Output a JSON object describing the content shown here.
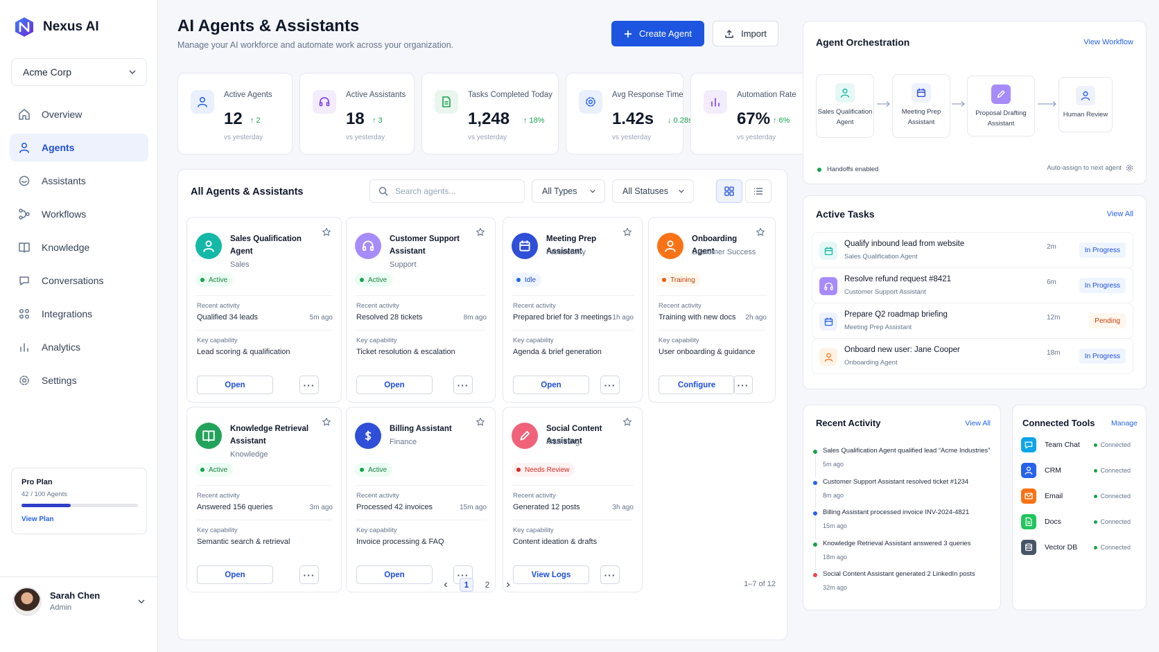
{
  "brand": {
    "name": "Nexus AI"
  },
  "org_selector": {
    "value": "Acme Corp"
  },
  "nav": [
    {
      "label": "Overview",
      "icon": "home-icon"
    },
    {
      "label": "Agents",
      "icon": "agent-icon",
      "active": true
    },
    {
      "label": "Assistants",
      "icon": "assistant-icon"
    },
    {
      "label": "Workflows",
      "icon": "workflow-icon"
    },
    {
      "label": "Knowledge",
      "icon": "book-icon"
    },
    {
      "label": "Conversations",
      "icon": "chat-icon"
    },
    {
      "label": "Integrations",
      "icon": "integrations-icon"
    },
    {
      "label": "Analytics",
      "icon": "analytics-icon"
    },
    {
      "label": "Settings",
      "icon": "gear-icon"
    }
  ],
  "plan": {
    "title": "Pro Plan",
    "usage": "42 / 100 Agents",
    "used": 42,
    "total": 100,
    "link": "View Plan"
  },
  "user": {
    "name": "Sarah Chen",
    "role": "Admin"
  },
  "header": {
    "title": "AI Agents & Assistants",
    "subtitle": "Manage your AI workforce and automate work across your organization.",
    "create_label": "Create Agent",
    "import_label": "Import"
  },
  "stats": [
    {
      "label": "Active Agents",
      "value": "12",
      "delta": "↑ 2",
      "note": "vs yesterday",
      "color": "#2563eb"
    },
    {
      "label": "Active Assistants",
      "value": "18",
      "delta": "↑ 3",
      "note": "vs yesterday",
      "color": "#7c3aed"
    },
    {
      "label": "Tasks Completed Today",
      "value": "1,248",
      "delta": "↑ 18%",
      "note": "vs yesterday",
      "color": "#16a34a"
    },
    {
      "label": "Avg Response Time",
      "value": "1.42s",
      "delta": "↓ 0.28s",
      "note": "vs yesterday",
      "color": "#2563eb"
    },
    {
      "label": "Automation Rate",
      "value": "67%",
      "delta": "↑ 6%",
      "note": "vs yesterday",
      "color": "#7c3aed"
    }
  ],
  "list": {
    "title": "All Agents & Assistants",
    "search_placeholder": "Search agents...",
    "type_filter": "All Types",
    "status_filter": "All Statuses",
    "activity_label": "Recent activity",
    "capability_label": "Key capability",
    "pagination": {
      "pages": [
        "1",
        "2"
      ],
      "current": "1",
      "count": "1–7 of 12"
    }
  },
  "cards": [
    {
      "name": "Sales Qualification Agent",
      "category": "Sales",
      "status": "Active",
      "status_kind": "green",
      "activity": "Qualified 34 leads",
      "time": "5m ago",
      "capability": "Lead scoring & qualification",
      "action": "Open",
      "color": "#14b8a6",
      "icon": "person-icon"
    },
    {
      "name": "Customer Support Assistant",
      "category": "Support",
      "status": "Active",
      "status_kind": "green",
      "activity": "Resolved 28 tickets",
      "time": "8m ago",
      "capability": "Ticket resolution & escalation",
      "action": "Open",
      "color": "#a78bfa",
      "icon": "headset-icon"
    },
    {
      "name": "Meeting Prep Assistant",
      "category": "Productivity",
      "status": "Idle",
      "status_kind": "blue",
      "activity": "Prepared brief for 3 meetings",
      "time": "1h ago",
      "capability": "Agenda & brief generation",
      "action": "Open",
      "color": "#2f4fd8",
      "icon": "calendar-icon"
    },
    {
      "name": "Onboarding Agent",
      "category": "Customer Success",
      "status": "Training",
      "status_kind": "orange",
      "activity": "Training with new docs",
      "time": "2h ago",
      "capability": "User onboarding & guidance",
      "action": "Configure",
      "color": "#f97316",
      "icon": "person-icon"
    },
    {
      "name": "Knowledge Retrieval Assistant",
      "category": "Knowledge",
      "status": "Active",
      "status_kind": "green",
      "activity": "Answered 156 queries",
      "time": "3m ago",
      "capability": "Semantic search & retrieval",
      "action": "Open",
      "color": "#22a35a",
      "icon": "book-icon"
    },
    {
      "name": "Billing Assistant",
      "category": "Finance",
      "status": "Active",
      "status_kind": "green",
      "activity": "Processed 42 invoices",
      "time": "15m ago",
      "capability": "Invoice processing & FAQ",
      "action": "Open",
      "color": "#2f4fd8",
      "icon": "dollar-icon"
    },
    {
      "name": "Social Content Assistant",
      "category": "Marketing",
      "status": "Needs Review",
      "status_kind": "red",
      "activity": "Generated 12 posts",
      "time": "3h ago",
      "capability": "Content ideation & drafts",
      "action": "View Logs",
      "color": "#f06277",
      "icon": "pen-icon"
    }
  ],
  "orchestration": {
    "title": "Agent Orchestration",
    "link": "View Workflow",
    "nodes": [
      {
        "label1": "Sales Qualification",
        "label2": "Agent",
        "color": "#14b8a6",
        "bg": "#e6f8f5"
      },
      {
        "label1": "Meeting Prep",
        "label2": "Assistant",
        "color": "#2f4fd8",
        "bg": "#eef2fd"
      },
      {
        "label1": "Proposal Drafting",
        "label2": "Assistant",
        "color": "#a78bfa",
        "bg": "#a78bfa"
      },
      {
        "label1": "Human Review",
        "label2": "",
        "color": "#2563eb",
        "bg": "#eef2fd"
      }
    ],
    "handoffs": "Handoffs enabled",
    "auto_assign": "Auto-assign to next agent"
  },
  "tasks": {
    "title": "Active Tasks",
    "link": "View All",
    "items": [
      {
        "title": "Qualify inbound lead from website",
        "agent": "Sales Qualification Agent",
        "time": "2m",
        "status": "In Progress",
        "kind": "blue",
        "color": "#14b8a6",
        "bg": "#e6f8f5"
      },
      {
        "title": "Resolve refund request #8421",
        "agent": "Customer Support Assistant",
        "time": "6m",
        "status": "In Progress",
        "kind": "blue",
        "color": "#ffffff",
        "bg": "#a78bfa"
      },
      {
        "title": "Prepare Q2 roadmap briefing",
        "agent": "Meeting Prep Assistant",
        "time": "12m",
        "status": "Pending",
        "kind": "orange",
        "color": "#2563eb",
        "bg": "#eef2fd"
      },
      {
        "title": "Onboard new user: Jane Cooper",
        "agent": "Onboarding Agent",
        "time": "18m",
        "status": "In Progress",
        "kind": "blue",
        "color": "#f97316",
        "bg": "#fff3e6"
      }
    ]
  },
  "recent": {
    "title": "Recent Activity",
    "link": "View All",
    "items": [
      {
        "text": "Sales Qualification Agent qualified lead “Acme Industries”",
        "time": "5m ago",
        "color": "#16a34a"
      },
      {
        "text": "Customer Support Assistant resolved ticket #1234",
        "time": "8m ago",
        "color": "#2563eb"
      },
      {
        "text": "Billing Assistant processed invoice INV-2024-4821",
        "time": "15m ago",
        "color": "#2563eb"
      },
      {
        "text": "Knowledge Retrieval Assistant answered 3 queries",
        "time": "18m ago",
        "color": "#16a34a"
      },
      {
        "text": "Social Content Assistant generated 2 LinkedIn posts",
        "time": "32m ago",
        "color": "#ef4444"
      }
    ]
  },
  "tools": {
    "title": "Connected Tools",
    "link": "Manage",
    "items": [
      {
        "name": "Team Chat",
        "status": "Connected",
        "color": "#0ea5e9",
        "icon": "chat-icon"
      },
      {
        "name": "CRM",
        "status": "Connected",
        "color": "#2563eb",
        "icon": "person-icon"
      },
      {
        "name": "Email",
        "status": "Connected",
        "color": "#f97316",
        "icon": "mail-icon"
      },
      {
        "name": "Docs",
        "status": "Connected",
        "color": "#22c55e",
        "icon": "doc-icon"
      },
      {
        "name": "Vector DB",
        "status": "Connected",
        "color": "#475569",
        "icon": "database-icon"
      }
    ]
  }
}
